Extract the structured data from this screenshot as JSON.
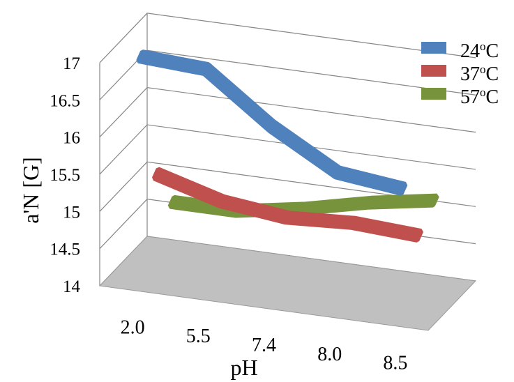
{
  "chart_data": {
    "type": "line",
    "style": "3d",
    "categories": [
      "2.0",
      "5.5",
      "7.4",
      "8.0",
      "8.5"
    ],
    "series": [
      {
        "name": "24",
        "unit_sup": "o",
        "unit": "C",
        "color": "#4f81bd",
        "values": [
          17.0,
          16.95,
          16.3,
          15.8,
          15.7
        ]
      },
      {
        "name": "37",
        "unit_sup": "o",
        "unit": "C",
        "color": "#c0504d",
        "values": [
          15.2,
          14.95,
          14.85,
          14.9,
          14.85
        ]
      },
      {
        "name": "57",
        "unit_sup": "o",
        "unit": "C",
        "color": "#77933c",
        "values": [
          14.6,
          14.6,
          14.75,
          14.95,
          15.1
        ]
      }
    ],
    "xlabel": "pH",
    "ylabel": "a'N [G]",
    "ylim": [
      14,
      17
    ],
    "y_ticks": [
      "14",
      "14.5",
      "15",
      "15.5",
      "16",
      "16.5",
      "17"
    ],
    "grid": true,
    "floor_color": "#c0c0c0",
    "legend_position": "right"
  }
}
